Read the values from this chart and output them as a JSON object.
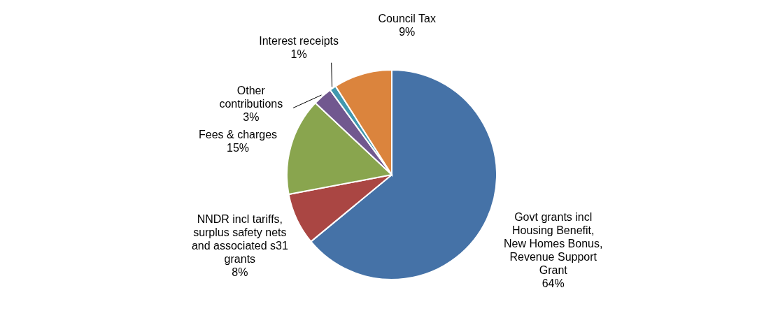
{
  "chart_data": {
    "type": "pie",
    "categories": [
      "Govt grants incl Housing Benefit, New Homes Bonus, Revenue Support Grant",
      "NNDR incl tariffs, surplus safety nets and associated s31 grants",
      "Fees & charges",
      "Other contributions",
      "Interest receipts",
      "Council Tax"
    ],
    "values": [
      64,
      8,
      15,
      3,
      1,
      9
    ],
    "colors": [
      "#4572a7",
      "#aa4643",
      "#89a54e",
      "#71588f",
      "#4198af",
      "#db843d"
    ],
    "value_labels": [
      "64%",
      "8%",
      "15%",
      "3%",
      "1%",
      "9%"
    ]
  }
}
